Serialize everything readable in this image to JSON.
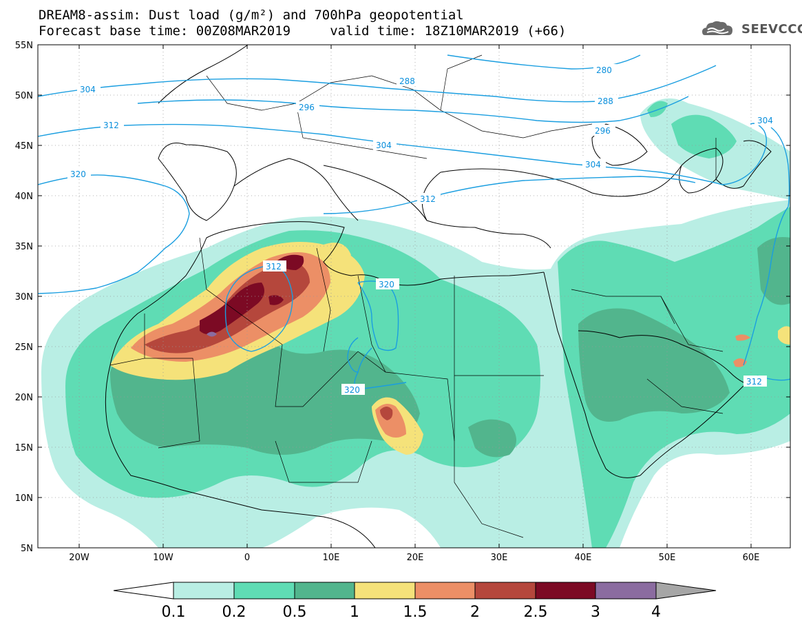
{
  "header": {
    "title_line1": "DREAM8-assim: Dust load (g/m²) and 700hPa geopotential",
    "title_line2": "Forecast base time: 00Z08MAR2019     valid time: 18Z10MAR2019 (+66)"
  },
  "logo": {
    "text": "SEEVCCC",
    "icon": "cloud-logo-icon"
  },
  "axes": {
    "lon_labels": [
      "20W",
      "10W",
      "0",
      "10E",
      "20E",
      "30E",
      "40E",
      "50E",
      "60E"
    ],
    "lat_labels": [
      "55N",
      "50N",
      "45N",
      "40N",
      "35N",
      "30N",
      "25N",
      "20N",
      "15N",
      "10N",
      "5N"
    ]
  },
  "contour_labels": [
    "304",
    "312",
    "320",
    "288",
    "296",
    "280",
    "288",
    "296",
    "304",
    "304",
    "312",
    "312",
    "320",
    "320",
    "304",
    "312"
  ],
  "colorbar": {
    "labels": [
      "0.1",
      "0.2",
      "0.5",
      "1",
      "1.5",
      "2",
      "2.5",
      "3",
      "4"
    ],
    "colors": [
      "#ffffff",
      "#b9eee4",
      "#5fdcb4",
      "#52b58d",
      "#f5e27a",
      "#ec8f66",
      "#b5473c",
      "#7c0a24",
      "#8b6ca0",
      "#a6a6a6"
    ]
  },
  "contour_color": "#1a9ee0"
}
